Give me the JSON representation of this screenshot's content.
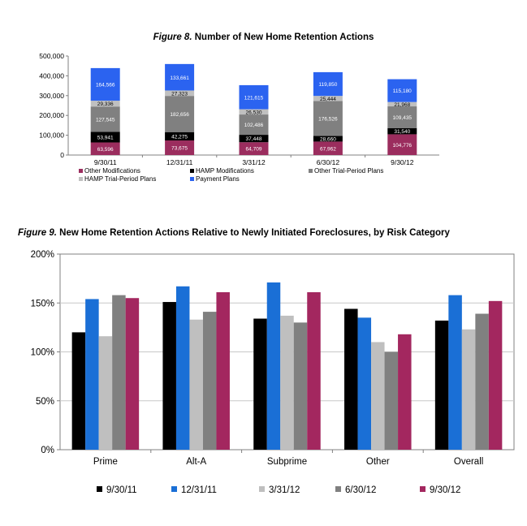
{
  "fig8": {
    "number": "Figure 8.",
    "title": "Number of New Home Retention Actions"
  },
  "fig9": {
    "number": "Figure 9.",
    "title": "New Home Retention Actions Relative to Newly Initiated Foreclosures, by Risk Category"
  },
  "colors": {
    "other_modifications": "#9b2d5e",
    "hamp_modifications": "#000000",
    "other_trial": "#808080",
    "hamp_trial": "#c0c0c0",
    "payment_plans": "#2b63f0",
    "s_0930_11": "#000000",
    "s_1231_11": "#1a6fd6",
    "s_0331_12": "#bfbfbf",
    "s_0630_12": "#808080",
    "s_0930_12": "#a3275f"
  },
  "chart_data": [
    {
      "type": "bar",
      "stacked": true,
      "title": "Number of New Home Retention Actions",
      "categories": [
        "9/30/11",
        "12/31/11",
        "3/31/12",
        "6/30/12",
        "9/30/12"
      ],
      "ylim": [
        0,
        500000
      ],
      "yticks": [
        0,
        100000,
        200000,
        300000,
        400000,
        500000
      ],
      "ytick_labels": [
        "0",
        "100,000",
        "200,000",
        "300,000",
        "400,000",
        "500,000"
      ],
      "series": [
        {
          "name": "Other Modifications",
          "color_key": "other_modifications",
          "values": [
            63596,
            73675,
            64709,
            67962,
            104776
          ],
          "labels": [
            "63,596",
            "73,675",
            "64,709",
            "67,962",
            "104,776"
          ]
        },
        {
          "name": "HAMP Modifications",
          "color_key": "hamp_modifications",
          "values": [
            53941,
            42275,
            37448,
            28660,
            31540
          ],
          "labels": [
            "53,941",
            "42,275",
            "37,448",
            "28,660",
            "31,540"
          ]
        },
        {
          "name": "Other Trial-Period Plans",
          "color_key": "other_trial",
          "values": [
            127545,
            182656,
            102486,
            176526,
            109435
          ],
          "labels": [
            "127,545",
            "182,656",
            "102,486",
            "176,526",
            "109,435"
          ]
        },
        {
          "name": "HAMP Trial-Period Plans",
          "color_key": "hamp_trial",
          "values": [
            29336,
            27323,
            26530,
            25444,
            21968
          ],
          "labels": [
            "29,336",
            "27,323",
            "26,530",
            "25,444",
            "21,968"
          ]
        },
        {
          "name": "Payment Plans",
          "color_key": "payment_plans",
          "values": [
            164566,
            133661,
            121615,
            119850,
            115180
          ],
          "labels": [
            "164,566",
            "133,661",
            "121,615",
            "119,850",
            "115,180"
          ]
        }
      ],
      "legend": [
        "Other Modifications",
        "HAMP Modifications",
        "Other Trial-Period Plans",
        "HAMP Trial-Period Plans",
        "Payment Plans"
      ]
    },
    {
      "type": "bar",
      "title": "New Home Retention Actions Relative to Newly Initiated Foreclosures, by Risk Category",
      "categories": [
        "Prime",
        "Alt-A",
        "Subprime",
        "Other",
        "Overall"
      ],
      "ylim": [
        0,
        200
      ],
      "yticks": [
        0,
        50,
        100,
        150,
        200
      ],
      "ytick_labels": [
        "0%",
        "50%",
        "100%",
        "150%",
        "200%"
      ],
      "series": [
        {
          "name": "9/30/11",
          "color_key": "s_0930_11",
          "values": [
            120,
            151,
            134,
            144,
            132
          ]
        },
        {
          "name": "12/31/11",
          "color_key": "s_1231_11",
          "values": [
            154,
            167,
            171,
            135,
            158
          ]
        },
        {
          "name": "3/31/12",
          "color_key": "s_0331_12",
          "values": [
            116,
            133,
            137,
            110,
            123
          ]
        },
        {
          "name": "6/30/12",
          "color_key": "s_0630_12",
          "values": [
            158,
            141,
            130,
            100,
            139
          ]
        },
        {
          "name": "9/30/12",
          "color_key": "s_0930_12",
          "values": [
            155,
            161,
            161,
            118,
            152
          ]
        }
      ],
      "legend": [
        "9/30/11",
        "12/31/11",
        "3/31/12",
        "6/30/12",
        "9/30/12"
      ]
    }
  ]
}
